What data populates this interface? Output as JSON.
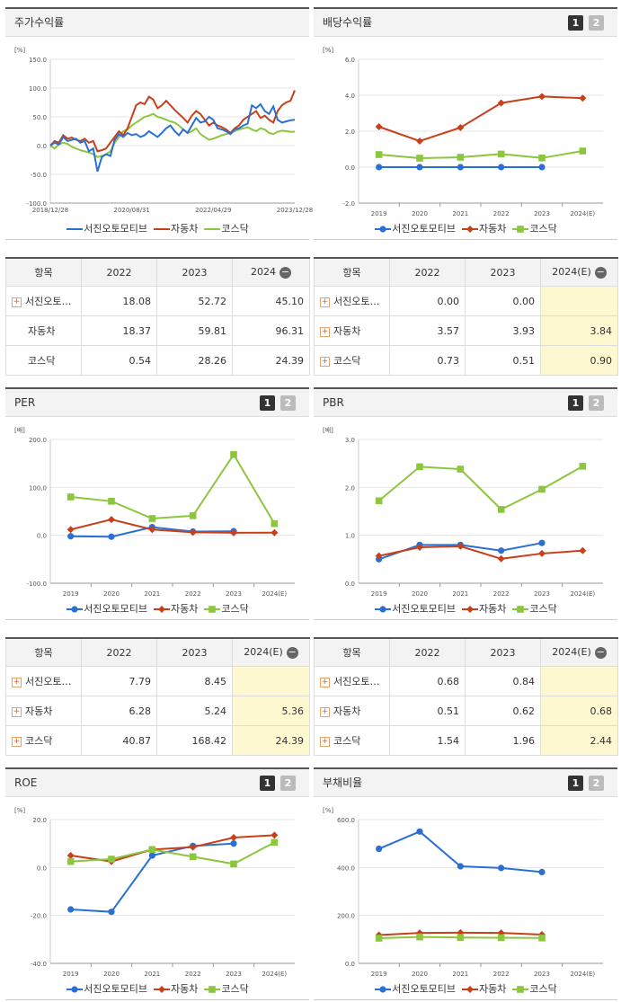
{
  "colors": {
    "blue": "#2a6fd6",
    "red": "#c8401a",
    "green": "#8cc63f",
    "grid": "#e6e6e6"
  },
  "legend": [
    "서진오토모티브",
    "자동차",
    "코스닥"
  ],
  "panels": {
    "stock": {
      "title": "주가수익률"
    },
    "dividend": {
      "title": "배당수익률",
      "tab1": "1",
      "tab2": "2"
    },
    "per": {
      "title": "PER",
      "tab1": "1",
      "tab2": "2"
    },
    "pbr": {
      "title": "PBR",
      "tab1": "1",
      "tab2": "2"
    },
    "roe": {
      "title": "ROE",
      "tab1": "1",
      "tab2": "2"
    },
    "debt": {
      "title": "부채비율",
      "tab1": "1",
      "tab2": "2"
    }
  },
  "tables": {
    "stock": {
      "header": [
        "항목",
        "2022",
        "2023",
        "2024"
      ],
      "rows": [
        [
          "서진오토…",
          "18.08",
          "52.72",
          "45.10"
        ],
        [
          "자동차",
          "18.37",
          "59.81",
          "96.31"
        ],
        [
          "코스닥",
          "0.54",
          "28.26",
          "24.39"
        ]
      ]
    },
    "dividend": {
      "header": [
        "항목",
        "2022",
        "2023",
        "2024(E)"
      ],
      "rows": [
        [
          "서진오토…",
          "0.00",
          "0.00",
          ""
        ],
        [
          "자동차",
          "3.57",
          "3.93",
          "3.84"
        ],
        [
          "코스닥",
          "0.73",
          "0.51",
          "0.90"
        ]
      ]
    },
    "per": {
      "header": [
        "항목",
        "2022",
        "2023",
        "2024(E)"
      ],
      "rows": [
        [
          "서진오토…",
          "7.79",
          "8.45",
          ""
        ],
        [
          "자동차",
          "6.28",
          "5.24",
          "5.36"
        ],
        [
          "코스닥",
          "40.87",
          "168.42",
          "24.39"
        ]
      ]
    },
    "pbr": {
      "header": [
        "항목",
        "2022",
        "2023",
        "2024(E)"
      ],
      "rows": [
        [
          "서진오토…",
          "0.68",
          "0.84",
          ""
        ],
        [
          "자동차",
          "0.51",
          "0.62",
          "0.68"
        ],
        [
          "코스닥",
          "1.54",
          "1.96",
          "2.44"
        ]
      ]
    }
  },
  "chart_data": [
    {
      "id": "stock",
      "type": "line",
      "unit": "[%]",
      "ylim": [
        -100,
        150
      ],
      "yticks": [
        "150.0",
        "100.0",
        "50.0",
        "0.0",
        "-50.0",
        "-100.0"
      ],
      "xticks": [
        "2018/12/28",
        "2020/08/31",
        "2022/04/29",
        "2023/12/28"
      ],
      "series": [
        {
          "name": "서진오토모티브",
          "values": [
            0,
            5,
            2,
            15,
            8,
            10,
            12,
            5,
            8,
            -10,
            -5,
            -45,
            -20,
            -15,
            -18,
            10,
            20,
            15,
            22,
            18,
            20,
            15,
            18,
            25,
            20,
            15,
            22,
            30,
            35,
            25,
            18,
            28,
            22,
            35,
            48,
            40,
            42,
            50,
            45,
            30,
            28,
            25,
            20,
            28,
            30,
            35,
            38,
            70,
            65,
            72,
            60,
            55,
            68,
            45,
            40,
            42,
            44,
            45
          ]
        },
        {
          "name": "자동차",
          "values": [
            0,
            8,
            5,
            18,
            12,
            14,
            10,
            8,
            12,
            5,
            8,
            -10,
            -8,
            -5,
            5,
            15,
            25,
            18,
            30,
            50,
            70,
            75,
            72,
            85,
            80,
            65,
            70,
            78,
            70,
            62,
            55,
            48,
            40,
            52,
            60,
            55,
            45,
            35,
            40,
            35,
            32,
            28,
            22,
            30,
            35,
            45,
            50,
            55,
            60,
            48,
            52,
            45,
            40,
            60,
            70,
            75,
            78,
            96
          ]
        },
        {
          "name": "코스닥",
          "values": [
            0,
            -5,
            2,
            5,
            3,
            -2,
            -5,
            -8,
            -10,
            -12,
            -15,
            -20,
            -18,
            -15,
            -10,
            5,
            15,
            25,
            28,
            35,
            40,
            45,
            50,
            52,
            55,
            50,
            48,
            45,
            42,
            40,
            35,
            28,
            22,
            25,
            30,
            20,
            15,
            10,
            12,
            15,
            18,
            20,
            22,
            25,
            28,
            30,
            32,
            28,
            25,
            30,
            28,
            22,
            20,
            24,
            26,
            25,
            24,
            24
          ]
        }
      ]
    },
    {
      "id": "dividend",
      "type": "line",
      "unit": "[%]",
      "ylim": [
        -2,
        6
      ],
      "yticks": [
        "6.0",
        "4.0",
        "2.0",
        "0.0",
        "-2.0"
      ],
      "categories": [
        "2019",
        "2020",
        "2021",
        "2022",
        "2023",
        "2024(E)"
      ],
      "series": [
        {
          "name": "서진오토모티브",
          "values": [
            0,
            0,
            0,
            0,
            0,
            null
          ]
        },
        {
          "name": "자동차",
          "values": [
            2.25,
            1.45,
            2.2,
            3.57,
            3.93,
            3.84
          ]
        },
        {
          "name": "코스닥",
          "values": [
            0.7,
            0.5,
            0.55,
            0.73,
            0.51,
            0.9
          ]
        }
      ]
    },
    {
      "id": "per",
      "type": "line",
      "unit": "[배]",
      "ylim": [
        -100,
        200
      ],
      "yticks": [
        "200.0",
        "100.0",
        "0.0",
        "-100.0"
      ],
      "categories": [
        "2019",
        "2020",
        "2021",
        "2022",
        "2023",
        "2024(E)"
      ],
      "series": [
        {
          "name": "서진오토모티브",
          "values": [
            -2,
            -3,
            17,
            7.79,
            8.45,
            null
          ]
        },
        {
          "name": "자동차",
          "values": [
            12,
            33,
            12,
            6.28,
            5.24,
            5.36
          ]
        },
        {
          "name": "코스닥",
          "values": [
            80,
            71,
            35,
            40.87,
            168.42,
            24.39
          ]
        }
      ]
    },
    {
      "id": "pbr",
      "type": "line",
      "unit": "[배]",
      "ylim": [
        0,
        3
      ],
      "yticks": [
        "3.0",
        "2.0",
        "1.0",
        "0.0"
      ],
      "categories": [
        "2019",
        "2020",
        "2021",
        "2022",
        "2023",
        "2024(E)"
      ],
      "series": [
        {
          "name": "서진오토모티브",
          "values": [
            0.5,
            0.8,
            0.8,
            0.68,
            0.84,
            null
          ]
        },
        {
          "name": "자동차",
          "values": [
            0.57,
            0.75,
            0.77,
            0.51,
            0.62,
            0.68
          ]
        },
        {
          "name": "코스닥",
          "values": [
            1.72,
            2.43,
            2.38,
            1.54,
            1.96,
            2.44
          ]
        }
      ]
    },
    {
      "id": "roe",
      "type": "line",
      "unit": "[%]",
      "ylim": [
        -40,
        20
      ],
      "yticks": [
        "20.0",
        "0.0",
        "-20.0",
        "-40.0"
      ],
      "categories": [
        "2019",
        "2020",
        "2021",
        "2022",
        "2023",
        "2024(E)"
      ],
      "series": [
        {
          "name": "서진오토모티브",
          "values": [
            -17.5,
            -18.5,
            5,
            9,
            10,
            null
          ]
        },
        {
          "name": "자동차",
          "values": [
            5,
            2.5,
            7.5,
            8.5,
            12.5,
            13.5
          ]
        },
        {
          "name": "코스닥",
          "values": [
            2.5,
            3.5,
            7.5,
            4.5,
            1.5,
            10.5
          ]
        }
      ]
    },
    {
      "id": "debt",
      "type": "line",
      "unit": "[%]",
      "ylim": [
        0,
        600
      ],
      "yticks": [
        "600.0",
        "400.0",
        "200.0",
        "0.0"
      ],
      "categories": [
        "2019",
        "2020",
        "2021",
        "2022",
        "2023",
        "2024(E)"
      ],
      "series": [
        {
          "name": "서진오토모티브",
          "values": [
            478,
            550,
            405,
            398,
            381,
            null
          ]
        },
        {
          "name": "자동차",
          "values": [
            118,
            127,
            128,
            127,
            120,
            null
          ]
        },
        {
          "name": "코스닥",
          "values": [
            105,
            110,
            108,
            107,
            106,
            null
          ]
        }
      ]
    }
  ]
}
